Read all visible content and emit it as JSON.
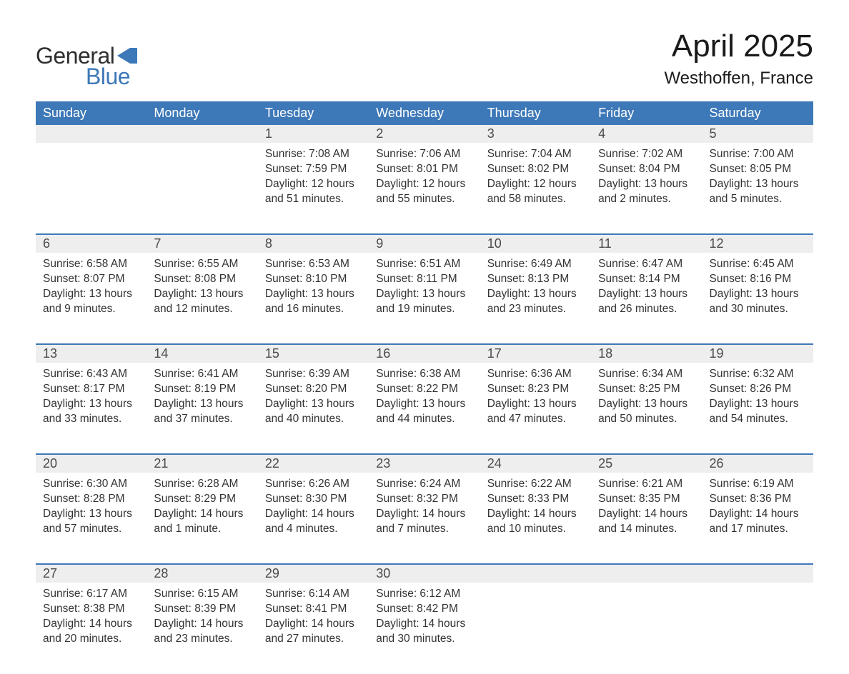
{
  "brand": {
    "part1": "General",
    "part2": "Blue",
    "text_color": "#2f2f2f",
    "accent_color": "#3d78b8",
    "flag_color": "#3d78b8"
  },
  "title": "April 2025",
  "location": "Westhoffen, France",
  "colors": {
    "header_bg": "#3d78b8",
    "header_text": "#ffffff",
    "daynum_bg": "#eeeeee",
    "text": "#333333",
    "rule": "#3d78b8",
    "page_bg": "#ffffff"
  },
  "fonts": {
    "title_size_pt": 33,
    "location_size_pt": 18,
    "header_size_pt": 14,
    "daynum_size_pt": 14,
    "body_size_pt": 12
  },
  "day_headers": [
    "Sunday",
    "Monday",
    "Tuesday",
    "Wednesday",
    "Thursday",
    "Friday",
    "Saturday"
  ],
  "weeks": [
    [
      null,
      null,
      {
        "n": "1",
        "sunrise": "Sunrise: 7:08 AM",
        "sunset": "Sunset: 7:59 PM",
        "dl1": "Daylight: 12 hours",
        "dl2": "and 51 minutes."
      },
      {
        "n": "2",
        "sunrise": "Sunrise: 7:06 AM",
        "sunset": "Sunset: 8:01 PM",
        "dl1": "Daylight: 12 hours",
        "dl2": "and 55 minutes."
      },
      {
        "n": "3",
        "sunrise": "Sunrise: 7:04 AM",
        "sunset": "Sunset: 8:02 PM",
        "dl1": "Daylight: 12 hours",
        "dl2": "and 58 minutes."
      },
      {
        "n": "4",
        "sunrise": "Sunrise: 7:02 AM",
        "sunset": "Sunset: 8:04 PM",
        "dl1": "Daylight: 13 hours",
        "dl2": "and 2 minutes."
      },
      {
        "n": "5",
        "sunrise": "Sunrise: 7:00 AM",
        "sunset": "Sunset: 8:05 PM",
        "dl1": "Daylight: 13 hours",
        "dl2": "and 5 minutes."
      }
    ],
    [
      {
        "n": "6",
        "sunrise": "Sunrise: 6:58 AM",
        "sunset": "Sunset: 8:07 PM",
        "dl1": "Daylight: 13 hours",
        "dl2": "and 9 minutes."
      },
      {
        "n": "7",
        "sunrise": "Sunrise: 6:55 AM",
        "sunset": "Sunset: 8:08 PM",
        "dl1": "Daylight: 13 hours",
        "dl2": "and 12 minutes."
      },
      {
        "n": "8",
        "sunrise": "Sunrise: 6:53 AM",
        "sunset": "Sunset: 8:10 PM",
        "dl1": "Daylight: 13 hours",
        "dl2": "and 16 minutes."
      },
      {
        "n": "9",
        "sunrise": "Sunrise: 6:51 AM",
        "sunset": "Sunset: 8:11 PM",
        "dl1": "Daylight: 13 hours",
        "dl2": "and 19 minutes."
      },
      {
        "n": "10",
        "sunrise": "Sunrise: 6:49 AM",
        "sunset": "Sunset: 8:13 PM",
        "dl1": "Daylight: 13 hours",
        "dl2": "and 23 minutes."
      },
      {
        "n": "11",
        "sunrise": "Sunrise: 6:47 AM",
        "sunset": "Sunset: 8:14 PM",
        "dl1": "Daylight: 13 hours",
        "dl2": "and 26 minutes."
      },
      {
        "n": "12",
        "sunrise": "Sunrise: 6:45 AM",
        "sunset": "Sunset: 8:16 PM",
        "dl1": "Daylight: 13 hours",
        "dl2": "and 30 minutes."
      }
    ],
    [
      {
        "n": "13",
        "sunrise": "Sunrise: 6:43 AM",
        "sunset": "Sunset: 8:17 PM",
        "dl1": "Daylight: 13 hours",
        "dl2": "and 33 minutes."
      },
      {
        "n": "14",
        "sunrise": "Sunrise: 6:41 AM",
        "sunset": "Sunset: 8:19 PM",
        "dl1": "Daylight: 13 hours",
        "dl2": "and 37 minutes."
      },
      {
        "n": "15",
        "sunrise": "Sunrise: 6:39 AM",
        "sunset": "Sunset: 8:20 PM",
        "dl1": "Daylight: 13 hours",
        "dl2": "and 40 minutes."
      },
      {
        "n": "16",
        "sunrise": "Sunrise: 6:38 AM",
        "sunset": "Sunset: 8:22 PM",
        "dl1": "Daylight: 13 hours",
        "dl2": "and 44 minutes."
      },
      {
        "n": "17",
        "sunrise": "Sunrise: 6:36 AM",
        "sunset": "Sunset: 8:23 PM",
        "dl1": "Daylight: 13 hours",
        "dl2": "and 47 minutes."
      },
      {
        "n": "18",
        "sunrise": "Sunrise: 6:34 AM",
        "sunset": "Sunset: 8:25 PM",
        "dl1": "Daylight: 13 hours",
        "dl2": "and 50 minutes."
      },
      {
        "n": "19",
        "sunrise": "Sunrise: 6:32 AM",
        "sunset": "Sunset: 8:26 PM",
        "dl1": "Daylight: 13 hours",
        "dl2": "and 54 minutes."
      }
    ],
    [
      {
        "n": "20",
        "sunrise": "Sunrise: 6:30 AM",
        "sunset": "Sunset: 8:28 PM",
        "dl1": "Daylight: 13 hours",
        "dl2": "and 57 minutes."
      },
      {
        "n": "21",
        "sunrise": "Sunrise: 6:28 AM",
        "sunset": "Sunset: 8:29 PM",
        "dl1": "Daylight: 14 hours",
        "dl2": "and 1 minute."
      },
      {
        "n": "22",
        "sunrise": "Sunrise: 6:26 AM",
        "sunset": "Sunset: 8:30 PM",
        "dl1": "Daylight: 14 hours",
        "dl2": "and 4 minutes."
      },
      {
        "n": "23",
        "sunrise": "Sunrise: 6:24 AM",
        "sunset": "Sunset: 8:32 PM",
        "dl1": "Daylight: 14 hours",
        "dl2": "and 7 minutes."
      },
      {
        "n": "24",
        "sunrise": "Sunrise: 6:22 AM",
        "sunset": "Sunset: 8:33 PM",
        "dl1": "Daylight: 14 hours",
        "dl2": "and 10 minutes."
      },
      {
        "n": "25",
        "sunrise": "Sunrise: 6:21 AM",
        "sunset": "Sunset: 8:35 PM",
        "dl1": "Daylight: 14 hours",
        "dl2": "and 14 minutes."
      },
      {
        "n": "26",
        "sunrise": "Sunrise: 6:19 AM",
        "sunset": "Sunset: 8:36 PM",
        "dl1": "Daylight: 14 hours",
        "dl2": "and 17 minutes."
      }
    ],
    [
      {
        "n": "27",
        "sunrise": "Sunrise: 6:17 AM",
        "sunset": "Sunset: 8:38 PM",
        "dl1": "Daylight: 14 hours",
        "dl2": "and 20 minutes."
      },
      {
        "n": "28",
        "sunrise": "Sunrise: 6:15 AM",
        "sunset": "Sunset: 8:39 PM",
        "dl1": "Daylight: 14 hours",
        "dl2": "and 23 minutes."
      },
      {
        "n": "29",
        "sunrise": "Sunrise: 6:14 AM",
        "sunset": "Sunset: 8:41 PM",
        "dl1": "Daylight: 14 hours",
        "dl2": "and 27 minutes."
      },
      {
        "n": "30",
        "sunrise": "Sunrise: 6:12 AM",
        "sunset": "Sunset: 8:42 PM",
        "dl1": "Daylight: 14 hours",
        "dl2": "and 30 minutes."
      },
      null,
      null,
      null
    ]
  ]
}
